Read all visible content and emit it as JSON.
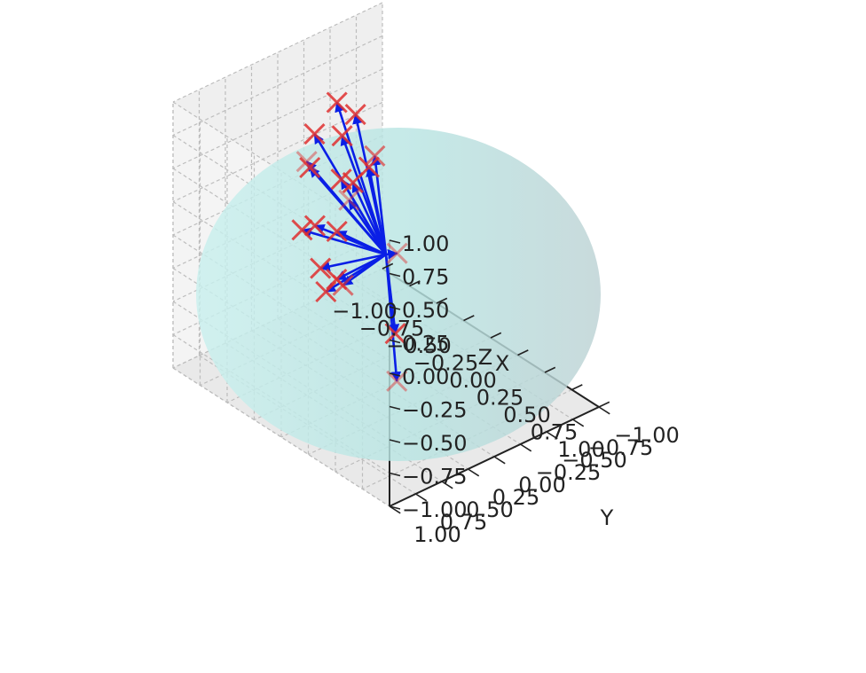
{
  "chart_data": {
    "type": "scatter",
    "projection": "3d",
    "title": "",
    "xlabel": "X",
    "ylabel": "Y",
    "zlabel": "Z",
    "xlim": [
      -1.0,
      1.0
    ],
    "ylim": [
      -1.0,
      1.0
    ],
    "zlim": [
      -1.0,
      1.0
    ],
    "x_ticks": [
      "−1.00",
      "−0.75",
      "−0.50",
      "−0.25",
      "0.00",
      "0.25",
      "0.50",
      "0.75",
      "1.00"
    ],
    "y_ticks": [
      "−1.00",
      "−0.75",
      "−0.50",
      "−0.25",
      "0.00",
      "0.25",
      "0.50",
      "0.75",
      "1.00"
    ],
    "z_ticks": [
      "−1.00",
      "−0.75",
      "−0.50",
      "−0.25",
      "0.00",
      "0.25",
      "0.50",
      "0.75",
      "1.00"
    ],
    "grid": true,
    "sphere": {
      "radius": 1.0,
      "center": [
        0,
        0,
        0
      ],
      "color": "#b8e4e2"
    },
    "vector_origin": [
      0,
      0,
      0
    ],
    "vector_color": "#0a1fe6",
    "marker_color": "#e03030",
    "series": [
      {
        "points": [
          [
            -0.55,
            -0.1,
            0.82
          ],
          [
            -0.2,
            0.55,
            0.8
          ],
          [
            -0.62,
            -0.35,
            0.6
          ],
          [
            -0.55,
            -0.15,
            0.55
          ],
          [
            -0.2,
            -0.1,
            0.6
          ],
          [
            -0.1,
            0.25,
            0.45
          ],
          [
            -0.35,
            -0.2,
            0.4
          ],
          [
            -0.95,
            -0.3,
            0.3
          ],
          [
            -0.8,
            -0.1,
            0.2
          ],
          [
            -0.45,
            -0.15,
            0.25
          ],
          [
            0.2,
            0.1,
            0.15
          ],
          [
            -0.8,
            -0.4,
            0.0
          ],
          [
            -0.55,
            -0.1,
            -0.15
          ],
          [
            -0.85,
            -0.2,
            -0.3
          ],
          [
            -0.92,
            -0.15,
            -0.35
          ],
          [
            -0.3,
            0.1,
            -0.35
          ],
          [
            -0.65,
            -0.2,
            -0.6
          ],
          [
            -0.75,
            -0.15,
            -0.55
          ],
          [
            -0.7,
            -0.15,
            -0.7
          ],
          [
            -0.3,
            -0.4,
            -0.9
          ],
          [
            0.1,
            0.0,
            -0.9
          ]
        ]
      }
    ]
  }
}
